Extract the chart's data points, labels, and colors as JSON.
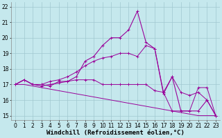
{
  "x": [
    0,
    1,
    2,
    3,
    4,
    5,
    6,
    7,
    8,
    9,
    10,
    11,
    12,
    13,
    14,
    15,
    16,
    17,
    18,
    19,
    20,
    21,
    22,
    23
  ],
  "line1_y": [
    17.0,
    17.3,
    17.0,
    17.0,
    16.9,
    17.2,
    17.2,
    17.3,
    17.3,
    17.3,
    17.0,
    17.0,
    17.0,
    17.0,
    17.0,
    17.0,
    16.6,
    16.5,
    15.3,
    15.3,
    15.3,
    16.8,
    16.8,
    15.0
  ],
  "line2_y": [
    17.0,
    17.3,
    17.0,
    17.0,
    17.2,
    17.3,
    17.5,
    17.8,
    18.2,
    18.5,
    18.7,
    18.8,
    19.0,
    19.0,
    18.8,
    19.5,
    19.3,
    16.5,
    17.5,
    16.5,
    16.3,
    16.5,
    16.0,
    15.0
  ],
  "line3_y": [
    17.0,
    17.0,
    16.9,
    16.8,
    16.7,
    16.6,
    16.5,
    16.4,
    16.3,
    16.2,
    16.1,
    16.0,
    15.9,
    15.8,
    15.7,
    15.6,
    15.5,
    15.4,
    15.3,
    15.2,
    15.1,
    15.0,
    15.0,
    15.0
  ],
  "line4_y": [
    17.0,
    17.3,
    17.0,
    16.9,
    17.0,
    17.1,
    17.2,
    17.5,
    18.5,
    18.8,
    19.5,
    20.0,
    20.0,
    20.5,
    21.7,
    19.7,
    19.3,
    16.4,
    17.5,
    15.3,
    15.3,
    15.3,
    16.0,
    15.0
  ],
  "line_color": "#990099",
  "bg_color": "#c5e8ed",
  "grid_color": "#a0c8d0",
  "xlim": [
    -0.5,
    23.5
  ],
  "ylim": [
    14.7,
    22.3
  ],
  "yticks": [
    15,
    16,
    17,
    18,
    19,
    20,
    21,
    22
  ],
  "xticks": [
    0,
    1,
    2,
    3,
    4,
    5,
    6,
    7,
    8,
    9,
    10,
    11,
    12,
    13,
    14,
    15,
    16,
    17,
    18,
    19,
    20,
    21,
    22,
    23
  ],
  "xlabel": "Windchill (Refroidissement éolien,°C)",
  "label_fontsize": 6.5,
  "tick_fontsize": 5.5
}
